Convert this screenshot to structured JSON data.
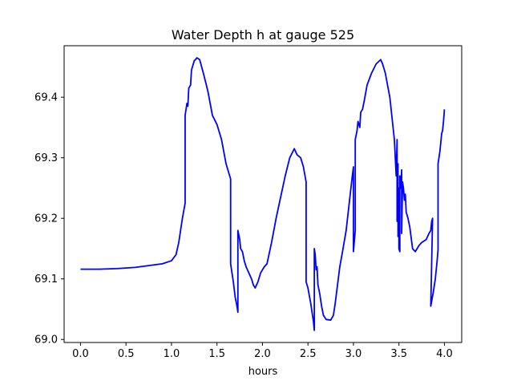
{
  "chart_data": {
    "type": "line",
    "title": "Water Depth h at gauge 525",
    "xlabel": "hours",
    "ylabel": "",
    "xlim": [
      -0.18,
      4.19
    ],
    "ylim": [
      68.995,
      69.485
    ],
    "x_ticks": [
      {
        "value": 0.0,
        "label": "0.0"
      },
      {
        "value": 0.5,
        "label": "0.5"
      },
      {
        "value": 1.0,
        "label": "1.0"
      },
      {
        "value": 1.5,
        "label": "1.5"
      },
      {
        "value": 2.0,
        "label": "2.0"
      },
      {
        "value": 2.5,
        "label": "2.5"
      },
      {
        "value": 3.0,
        "label": "3.0"
      },
      {
        "value": 3.5,
        "label": "3.5"
      },
      {
        "value": 4.0,
        "label": "4.0"
      }
    ],
    "y_ticks": [
      {
        "value": 69.0,
        "label": "69.0"
      },
      {
        "value": 69.1,
        "label": "69.1"
      },
      {
        "value": 69.2,
        "label": "69.2"
      },
      {
        "value": 69.3,
        "label": "69.3"
      },
      {
        "value": 69.4,
        "label": "69.4"
      }
    ],
    "grid": false,
    "series": [
      {
        "color": "#0000ff",
        "points": [
          [
            0.0,
            69.116
          ],
          [
            0.2,
            69.116
          ],
          [
            0.4,
            69.117
          ],
          [
            0.6,
            69.119
          ],
          [
            0.7,
            69.121
          ],
          [
            0.8,
            69.123
          ],
          [
            0.9,
            69.125
          ],
          [
            1.0,
            69.13
          ],
          [
            1.05,
            69.14
          ],
          [
            1.08,
            69.16
          ],
          [
            1.12,
            69.2
          ],
          [
            1.15,
            69.225
          ],
          [
            1.15,
            69.37
          ],
          [
            1.17,
            69.39
          ],
          [
            1.18,
            69.385
          ],
          [
            1.19,
            69.415
          ],
          [
            1.21,
            69.42
          ],
          [
            1.22,
            69.445
          ],
          [
            1.25,
            69.46
          ],
          [
            1.28,
            69.465
          ],
          [
            1.31,
            69.462
          ],
          [
            1.35,
            69.44
          ],
          [
            1.4,
            69.41
          ],
          [
            1.45,
            69.37
          ],
          [
            1.5,
            69.355
          ],
          [
            1.55,
            69.33
          ],
          [
            1.6,
            69.29
          ],
          [
            1.65,
            69.265
          ],
          [
            1.65,
            69.125
          ],
          [
            1.68,
            69.095
          ],
          [
            1.7,
            69.07
          ],
          [
            1.72,
            69.055
          ],
          [
            1.73,
            69.045
          ],
          [
            1.73,
            69.18
          ],
          [
            1.75,
            69.165
          ],
          [
            1.76,
            69.15
          ],
          [
            1.78,
            69.145
          ],
          [
            1.8,
            69.13
          ],
          [
            1.82,
            69.12
          ],
          [
            1.85,
            69.11
          ],
          [
            1.88,
            69.1
          ],
          [
            1.9,
            69.09
          ],
          [
            1.92,
            69.085
          ],
          [
            1.95,
            69.095
          ],
          [
            1.98,
            69.11
          ],
          [
            2.02,
            69.12
          ],
          [
            2.05,
            69.125
          ],
          [
            2.1,
            69.16
          ],
          [
            2.15,
            69.2
          ],
          [
            2.2,
            69.235
          ],
          [
            2.25,
            69.27
          ],
          [
            2.3,
            69.3
          ],
          [
            2.35,
            69.315
          ],
          [
            2.38,
            69.305
          ],
          [
            2.42,
            69.3
          ],
          [
            2.45,
            69.285
          ],
          [
            2.48,
            69.26
          ],
          [
            2.48,
            69.095
          ],
          [
            2.5,
            69.085
          ],
          [
            2.53,
            69.06
          ],
          [
            2.56,
            69.03
          ],
          [
            2.57,
            69.015
          ],
          [
            2.57,
            69.15
          ],
          [
            2.58,
            69.14
          ],
          [
            2.59,
            69.115
          ],
          [
            2.6,
            69.12
          ],
          [
            2.61,
            69.09
          ],
          [
            2.63,
            69.075
          ],
          [
            2.65,
            69.055
          ],
          [
            2.67,
            69.04
          ],
          [
            2.7,
            69.033
          ],
          [
            2.75,
            69.032
          ],
          [
            2.78,
            69.04
          ],
          [
            2.8,
            69.06
          ],
          [
            2.85,
            69.12
          ],
          [
            2.88,
            69.145
          ],
          [
            2.92,
            69.18
          ],
          [
            2.95,
            69.22
          ],
          [
            2.98,
            69.26
          ],
          [
            3.0,
            69.285
          ],
          [
            3.0,
            69.145
          ],
          [
            3.02,
            69.18
          ],
          [
            3.02,
            69.33
          ],
          [
            3.04,
            69.345
          ],
          [
            3.05,
            69.36
          ],
          [
            3.07,
            69.35
          ],
          [
            3.08,
            69.375
          ],
          [
            3.1,
            69.38
          ],
          [
            3.12,
            69.395
          ],
          [
            3.15,
            69.42
          ],
          [
            3.2,
            69.44
          ],
          [
            3.25,
            69.455
          ],
          [
            3.3,
            69.462
          ],
          [
            3.32,
            69.455
          ],
          [
            3.35,
            69.44
          ],
          [
            3.4,
            69.4
          ],
          [
            3.45,
            69.33
          ],
          [
            3.46,
            69.3
          ],
          [
            3.47,
            69.27
          ],
          [
            3.48,
            69.33
          ],
          [
            3.48,
            69.195
          ],
          [
            3.49,
            69.29
          ],
          [
            3.49,
            69.17
          ],
          [
            3.5,
            69.25
          ],
          [
            3.5,
            69.15
          ],
          [
            3.51,
            69.145
          ],
          [
            3.51,
            69.27
          ],
          [
            3.52,
            69.25
          ],
          [
            3.53,
            69.28
          ],
          [
            3.53,
            69.175
          ],
          [
            3.54,
            69.26
          ],
          [
            3.55,
            69.25
          ],
          [
            3.56,
            69.23
          ],
          [
            3.57,
            69.24
          ],
          [
            3.58,
            69.21
          ],
          [
            3.6,
            69.2
          ],
          [
            3.62,
            69.185
          ],
          [
            3.65,
            69.15
          ],
          [
            3.68,
            69.145
          ],
          [
            3.72,
            69.155
          ],
          [
            3.75,
            69.16
          ],
          [
            3.8,
            69.165
          ],
          [
            3.83,
            69.175
          ],
          [
            3.85,
            69.18
          ],
          [
            3.86,
            69.195
          ],
          [
            3.87,
            69.2
          ],
          [
            3.85,
            69.055
          ],
          [
            3.88,
            69.08
          ],
          [
            3.9,
            69.1
          ],
          [
            3.92,
            69.13
          ],
          [
            3.93,
            69.148
          ],
          [
            3.93,
            69.29
          ],
          [
            3.95,
            69.31
          ],
          [
            3.97,
            69.34
          ],
          [
            3.98,
            69.345
          ],
          [
            3.99,
            69.36
          ],
          [
            4.0,
            69.38
          ]
        ]
      }
    ]
  }
}
